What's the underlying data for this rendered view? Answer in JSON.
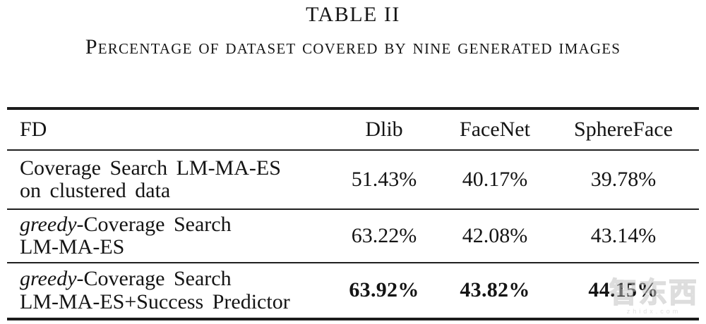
{
  "title": "TABLE II",
  "caption": "Percentage of dataset covered by nine generated images",
  "table": {
    "columns": [
      "FD",
      "Dlib",
      "FaceNet",
      "SphereFace"
    ],
    "rows": [
      {
        "italic_prefix": "",
        "method_line1": "Coverage Search LM-MA-ES",
        "method_line2": "on clustered data",
        "dlib": "51.43%",
        "facenet": "40.17%",
        "sphereface": "39.78%",
        "bold_values": false
      },
      {
        "italic_prefix": "greedy",
        "method_line1": "-Coverage Search",
        "method_line2": "LM-MA-ES",
        "dlib": "63.22%",
        "facenet": "42.08%",
        "sphereface": "43.14%",
        "bold_values": false
      },
      {
        "italic_prefix": "greedy",
        "method_line1": "-Coverage Search",
        "method_line2": "LM-MA-ES+Success Predictor",
        "dlib": "63.92%",
        "facenet": "43.82%",
        "sphereface": "44.15%",
        "bold_values": true
      }
    ]
  },
  "watermark": {
    "text": "智东西",
    "subtext": "zhidx.com"
  }
}
